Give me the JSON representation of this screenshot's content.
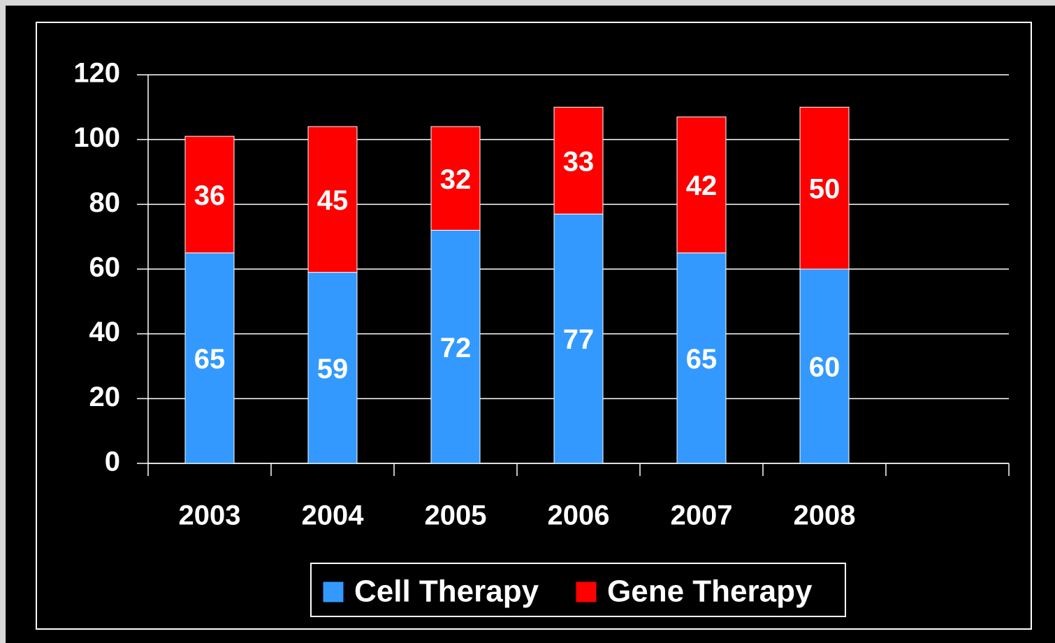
{
  "chart_data": {
    "type": "bar",
    "stacked": true,
    "categories": [
      "2003",
      "2004",
      "2005",
      "2006",
      "2007",
      "2008",
      null
    ],
    "series": [
      {
        "name": "Cell Therapy",
        "color": "#3399ff",
        "values": [
          65,
          59,
          72,
          77,
          65,
          60,
          null
        ]
      },
      {
        "name": "Gene Therapy",
        "color": "#ff0000",
        "values": [
          36,
          45,
          32,
          33,
          42,
          50,
          null
        ]
      }
    ],
    "ylim": [
      0,
      120
    ],
    "yticks": [
      0,
      20,
      40,
      60,
      80,
      100,
      120
    ],
    "grid": true,
    "legend": "bottom"
  }
}
